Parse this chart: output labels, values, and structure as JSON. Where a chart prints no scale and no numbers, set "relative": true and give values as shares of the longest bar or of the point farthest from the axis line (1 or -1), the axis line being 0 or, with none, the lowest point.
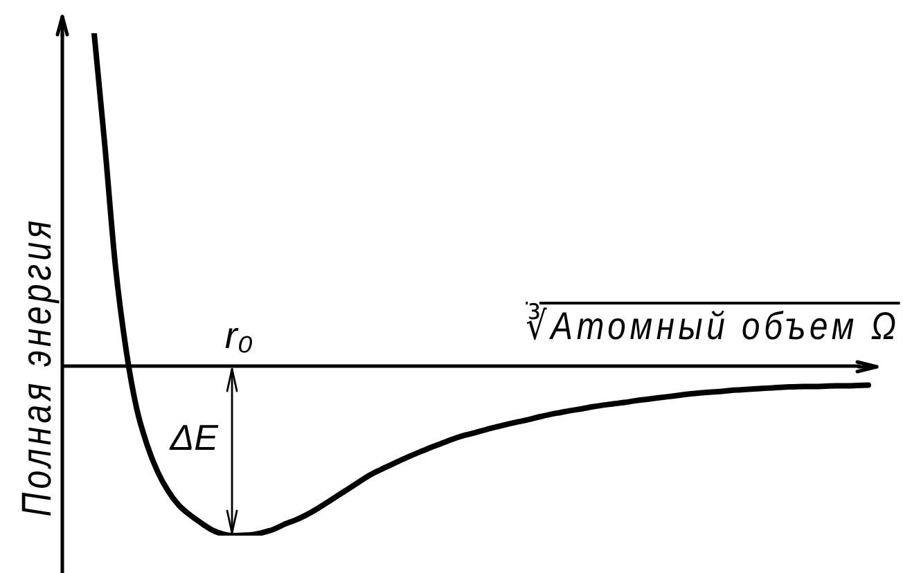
{
  "chart_data": {
    "type": "line",
    "relative": true,
    "xlabel": "∛Атомный объем Ω",
    "ylabel": "Полная энергия",
    "annotations": [
      "r₀",
      "ΔE"
    ],
    "categories": [
      null,
      null,
      null,
      null,
      null,
      null,
      null,
      null,
      null,
      null,
      null,
      null,
      null,
      null,
      null,
      null,
      null,
      null,
      null,
      null,
      null,
      null,
      null,
      null,
      null,
      null,
      null,
      null,
      null,
      null,
      null,
      null,
      null,
      null,
      null,
      null,
      null,
      null,
      null,
      null,
      null,
      null,
      null,
      null,
      null,
      null,
      null,
      null,
      null,
      null,
      null,
      null,
      null,
      null,
      null,
      null,
      null,
      null,
      null,
      null,
      null,
      null,
      null,
      null,
      null,
      null,
      null,
      null,
      null,
      null,
      null,
      null,
      null,
      null,
      null,
      null,
      null
    ],
    "values": [
      null,
      null,
      null,
      1,
      0.666,
      0.303,
      0.052,
      -0.126,
      -0.237,
      -0.318,
      -0.376,
      -0.418,
      -0.446,
      -0.469,
      -0.49,
      -0.503,
      -0.509,
      -0.508,
      -0.506,
      -0.499,
      -0.489,
      -0.474,
      -0.462,
      -0.447,
      -0.429,
      -0.409,
      -0.388,
      -0.368,
      -0.347,
      -0.327,
      -0.311,
      -0.296,
      -0.281,
      -0.267,
      -0.254,
      -0.241,
      -0.229,
      -0.217,
      -0.207,
      -0.199,
      -0.19,
      -0.182,
      -0.174,
      -0.167,
      -0.16,
      -0.152,
      -0.145,
      -0.139,
      -0.133,
      -0.128,
      -0.122,
      -0.117,
      -0.113,
      -0.109,
      -0.104,
      -0.1,
      -0.096,
      -0.092,
      -0.088,
      -0.084,
      -0.081,
      -0.078,
      -0.076,
      -0.073,
      -0.071,
      -0.069,
      -0.067,
      -0.065,
      -0.063,
      -0.062,
      -0.061,
      -0.061,
      -0.06,
      -0.059,
      -0.059,
      -0.058,
      -0.057
    ],
    "color": "#000000",
    "marker": "none"
  }
}
